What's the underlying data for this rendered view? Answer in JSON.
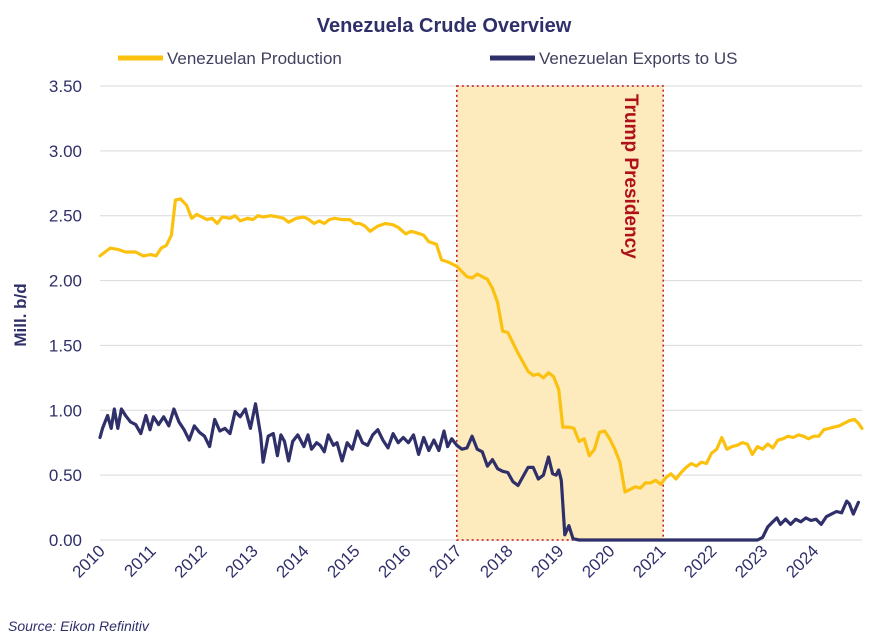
{
  "chart_data": {
    "type": "line",
    "title": "Venezuela Crude Overview",
    "ylabel": "Mill. b/d",
    "xlabel": "",
    "ylim": [
      0,
      3.5
    ],
    "xlim": [
      2010,
      2024.95
    ],
    "yticks": [
      "0.00",
      "0.50",
      "1.00",
      "1.50",
      "2.00",
      "2.50",
      "3.00",
      "3.50"
    ],
    "xticks": [
      "2010",
      "2011",
      "2012",
      "2013",
      "2014",
      "2015",
      "2016",
      "2017",
      "2018",
      "2019",
      "2020",
      "2021",
      "2022",
      "2023",
      "2024"
    ],
    "grid": true,
    "legend_position": "top",
    "source": "Source: Eikon Refinitiv",
    "annotation": {
      "label": "Trump Presidency",
      "x_start": 2017.0,
      "x_end": 2021.05,
      "fill": "#fdebbd",
      "border": "#c0101a"
    },
    "series": [
      {
        "name": "Venezuelan Production",
        "color": "#fcc10f",
        "points": [
          [
            2010.0,
            2.19
          ],
          [
            2010.1,
            2.22
          ],
          [
            2010.2,
            2.25
          ],
          [
            2010.35,
            2.24
          ],
          [
            2010.5,
            2.22
          ],
          [
            2010.7,
            2.22
          ],
          [
            2010.85,
            2.19
          ],
          [
            2011.0,
            2.2
          ],
          [
            2011.1,
            2.19
          ],
          [
            2011.2,
            2.25
          ],
          [
            2011.3,
            2.27
          ],
          [
            2011.4,
            2.35
          ],
          [
            2011.48,
            2.62
          ],
          [
            2011.58,
            2.63
          ],
          [
            2011.7,
            2.58
          ],
          [
            2011.8,
            2.48
          ],
          [
            2011.9,
            2.51
          ],
          [
            2012.0,
            2.49
          ],
          [
            2012.1,
            2.47
          ],
          [
            2012.2,
            2.48
          ],
          [
            2012.3,
            2.44
          ],
          [
            2012.4,
            2.49
          ],
          [
            2012.55,
            2.48
          ],
          [
            2012.65,
            2.5
          ],
          [
            2012.75,
            2.46
          ],
          [
            2012.9,
            2.48
          ],
          [
            2013.0,
            2.47
          ],
          [
            2013.1,
            2.5
          ],
          [
            2013.2,
            2.49
          ],
          [
            2013.35,
            2.5
          ],
          [
            2013.5,
            2.49
          ],
          [
            2013.6,
            2.48
          ],
          [
            2013.7,
            2.45
          ],
          [
            2013.85,
            2.48
          ],
          [
            2014.0,
            2.49
          ],
          [
            2014.1,
            2.47
          ],
          [
            2014.2,
            2.44
          ],
          [
            2014.3,
            2.46
          ],
          [
            2014.4,
            2.44
          ],
          [
            2014.5,
            2.47
          ],
          [
            2014.6,
            2.48
          ],
          [
            2014.75,
            2.47
          ],
          [
            2014.9,
            2.47
          ],
          [
            2015.0,
            2.44
          ],
          [
            2015.1,
            2.44
          ],
          [
            2015.2,
            2.42
          ],
          [
            2015.3,
            2.38
          ],
          [
            2015.45,
            2.42
          ],
          [
            2015.6,
            2.44
          ],
          [
            2015.75,
            2.43
          ],
          [
            2015.85,
            2.41
          ],
          [
            2016.0,
            2.36
          ],
          [
            2016.1,
            2.38
          ],
          [
            2016.2,
            2.37
          ],
          [
            2016.35,
            2.35
          ],
          [
            2016.45,
            2.3
          ],
          [
            2016.6,
            2.28
          ],
          [
            2016.7,
            2.16
          ],
          [
            2016.85,
            2.14
          ],
          [
            2017.0,
            2.11
          ],
          [
            2017.1,
            2.07
          ],
          [
            2017.2,
            2.03
          ],
          [
            2017.3,
            2.02
          ],
          [
            2017.4,
            2.05
          ],
          [
            2017.5,
            2.03
          ],
          [
            2017.6,
            2.01
          ],
          [
            2017.7,
            1.94
          ],
          [
            2017.8,
            1.83
          ],
          [
            2017.9,
            1.61
          ],
          [
            2018.0,
            1.6
          ],
          [
            2018.1,
            1.52
          ],
          [
            2018.2,
            1.44
          ],
          [
            2018.3,
            1.37
          ],
          [
            2018.4,
            1.3
          ],
          [
            2018.5,
            1.27
          ],
          [
            2018.6,
            1.28
          ],
          [
            2018.7,
            1.25
          ],
          [
            2018.8,
            1.29
          ],
          [
            2018.9,
            1.26
          ],
          [
            2019.0,
            1.16
          ],
          [
            2019.08,
            0.87
          ],
          [
            2019.2,
            0.87
          ],
          [
            2019.3,
            0.86
          ],
          [
            2019.4,
            0.76
          ],
          [
            2019.5,
            0.78
          ],
          [
            2019.6,
            0.65
          ],
          [
            2019.7,
            0.7
          ],
          [
            2019.8,
            0.83
          ],
          [
            2019.9,
            0.84
          ],
          [
            2020.0,
            0.78
          ],
          [
            2020.1,
            0.7
          ],
          [
            2020.2,
            0.6
          ],
          [
            2020.3,
            0.37
          ],
          [
            2020.4,
            0.39
          ],
          [
            2020.5,
            0.41
          ],
          [
            2020.6,
            0.4
          ],
          [
            2020.7,
            0.44
          ],
          [
            2020.8,
            0.44
          ],
          [
            2020.9,
            0.46
          ],
          [
            2021.0,
            0.43
          ],
          [
            2021.1,
            0.48
          ],
          [
            2021.2,
            0.51
          ],
          [
            2021.3,
            0.47
          ],
          [
            2021.4,
            0.52
          ],
          [
            2021.5,
            0.56
          ],
          [
            2021.6,
            0.59
          ],
          [
            2021.7,
            0.57
          ],
          [
            2021.8,
            0.6
          ],
          [
            2021.9,
            0.59
          ],
          [
            2022.0,
            0.67
          ],
          [
            2022.1,
            0.7
          ],
          [
            2022.2,
            0.79
          ],
          [
            2022.3,
            0.7
          ],
          [
            2022.4,
            0.72
          ],
          [
            2022.5,
            0.73
          ],
          [
            2022.6,
            0.75
          ],
          [
            2022.7,
            0.74
          ],
          [
            2022.8,
            0.66
          ],
          [
            2022.9,
            0.72
          ],
          [
            2023.0,
            0.7
          ],
          [
            2023.1,
            0.74
          ],
          [
            2023.2,
            0.71
          ],
          [
            2023.3,
            0.77
          ],
          [
            2023.4,
            0.78
          ],
          [
            2023.5,
            0.8
          ],
          [
            2023.6,
            0.79
          ],
          [
            2023.7,
            0.81
          ],
          [
            2023.8,
            0.8
          ],
          [
            2023.9,
            0.78
          ],
          [
            2024.0,
            0.8
          ],
          [
            2024.1,
            0.8
          ],
          [
            2024.2,
            0.85
          ],
          [
            2024.3,
            0.86
          ],
          [
            2024.4,
            0.87
          ],
          [
            2024.5,
            0.88
          ],
          [
            2024.6,
            0.9
          ],
          [
            2024.7,
            0.92
          ],
          [
            2024.8,
            0.93
          ],
          [
            2024.88,
            0.9
          ],
          [
            2024.95,
            0.86
          ]
        ]
      },
      {
        "name": "Venezuelan Exports to US",
        "color": "#2f2f6a",
        "points": [
          [
            2010.0,
            0.79
          ],
          [
            2010.05,
            0.86
          ],
          [
            2010.15,
            0.96
          ],
          [
            2010.22,
            0.86
          ],
          [
            2010.28,
            1.01
          ],
          [
            2010.35,
            0.86
          ],
          [
            2010.42,
            1.01
          ],
          [
            2010.5,
            0.96
          ],
          [
            2010.6,
            0.91
          ],
          [
            2010.7,
            0.89
          ],
          [
            2010.8,
            0.82
          ],
          [
            2010.9,
            0.96
          ],
          [
            2010.98,
            0.85
          ],
          [
            2011.05,
            0.95
          ],
          [
            2011.15,
            0.89
          ],
          [
            2011.25,
            0.95
          ],
          [
            2011.35,
            0.88
          ],
          [
            2011.45,
            1.01
          ],
          [
            2011.55,
            0.91
          ],
          [
            2011.65,
            0.85
          ],
          [
            2011.75,
            0.77
          ],
          [
            2011.85,
            0.88
          ],
          [
            2011.95,
            0.83
          ],
          [
            2012.05,
            0.8
          ],
          [
            2012.15,
            0.72
          ],
          [
            2012.25,
            0.93
          ],
          [
            2012.35,
            0.84
          ],
          [
            2012.45,
            0.86
          ],
          [
            2012.55,
            0.82
          ],
          [
            2012.65,
            0.99
          ],
          [
            2012.75,
            0.95
          ],
          [
            2012.85,
            1.01
          ],
          [
            2012.95,
            0.86
          ],
          [
            2013.05,
            1.05
          ],
          [
            2013.15,
            0.81
          ],
          [
            2013.2,
            0.6
          ],
          [
            2013.3,
            0.8
          ],
          [
            2013.4,
            0.82
          ],
          [
            2013.48,
            0.65
          ],
          [
            2013.55,
            0.81
          ],
          [
            2013.62,
            0.76
          ],
          [
            2013.7,
            0.61
          ],
          [
            2013.78,
            0.76
          ],
          [
            2013.88,
            0.81
          ],
          [
            2014.0,
            0.72
          ],
          [
            2014.08,
            0.81
          ],
          [
            2014.15,
            0.7
          ],
          [
            2014.25,
            0.75
          ],
          [
            2014.32,
            0.73
          ],
          [
            2014.4,
            0.68
          ],
          [
            2014.48,
            0.81
          ],
          [
            2014.58,
            0.73
          ],
          [
            2014.65,
            0.75
          ],
          [
            2014.75,
            0.61
          ],
          [
            2014.85,
            0.75
          ],
          [
            2014.95,
            0.7
          ],
          [
            2015.05,
            0.84
          ],
          [
            2015.15,
            0.75
          ],
          [
            2015.25,
            0.73
          ],
          [
            2015.35,
            0.81
          ],
          [
            2015.45,
            0.85
          ],
          [
            2015.55,
            0.77
          ],
          [
            2015.65,
            0.71
          ],
          [
            2015.75,
            0.82
          ],
          [
            2015.85,
            0.75
          ],
          [
            2015.95,
            0.79
          ],
          [
            2016.05,
            0.75
          ],
          [
            2016.15,
            0.81
          ],
          [
            2016.25,
            0.66
          ],
          [
            2016.35,
            0.79
          ],
          [
            2016.45,
            0.69
          ],
          [
            2016.55,
            0.77
          ],
          [
            2016.65,
            0.69
          ],
          [
            2016.75,
            0.84
          ],
          [
            2016.82,
            0.72
          ],
          [
            2016.9,
            0.78
          ],
          [
            2017.0,
            0.73
          ],
          [
            2017.1,
            0.7
          ],
          [
            2017.2,
            0.71
          ],
          [
            2017.3,
            0.8
          ],
          [
            2017.4,
            0.7
          ],
          [
            2017.5,
            0.68
          ],
          [
            2017.6,
            0.57
          ],
          [
            2017.7,
            0.62
          ],
          [
            2017.8,
            0.55
          ],
          [
            2017.9,
            0.53
          ],
          [
            2018.0,
            0.52
          ],
          [
            2018.1,
            0.45
          ],
          [
            2018.2,
            0.42
          ],
          [
            2018.3,
            0.49
          ],
          [
            2018.4,
            0.56
          ],
          [
            2018.5,
            0.56
          ],
          [
            2018.6,
            0.47
          ],
          [
            2018.7,
            0.5
          ],
          [
            2018.8,
            0.64
          ],
          [
            2018.88,
            0.51
          ],
          [
            2018.95,
            0.5
          ],
          [
            2019.0,
            0.54
          ],
          [
            2019.05,
            0.46
          ],
          [
            2019.12,
            0.04
          ],
          [
            2019.2,
            0.11
          ],
          [
            2019.28,
            0.01
          ],
          [
            2019.4,
            0.0
          ],
          [
            2020.0,
            0.0
          ],
          [
            2021.0,
            0.0
          ],
          [
            2022.0,
            0.0
          ],
          [
            2022.9,
            0.0
          ],
          [
            2023.0,
            0.02
          ],
          [
            2023.1,
            0.1
          ],
          [
            2023.2,
            0.14
          ],
          [
            2023.28,
            0.17
          ],
          [
            2023.35,
            0.12
          ],
          [
            2023.45,
            0.16
          ],
          [
            2023.55,
            0.12
          ],
          [
            2023.65,
            0.16
          ],
          [
            2023.75,
            0.14
          ],
          [
            2023.85,
            0.17
          ],
          [
            2023.95,
            0.15
          ],
          [
            2024.05,
            0.16
          ],
          [
            2024.15,
            0.12
          ],
          [
            2024.25,
            0.18
          ],
          [
            2024.35,
            0.2
          ],
          [
            2024.45,
            0.22
          ],
          [
            2024.55,
            0.21
          ],
          [
            2024.65,
            0.3
          ],
          [
            2024.7,
            0.28
          ],
          [
            2024.78,
            0.2
          ],
          [
            2024.88,
            0.29
          ]
        ]
      }
    ]
  }
}
